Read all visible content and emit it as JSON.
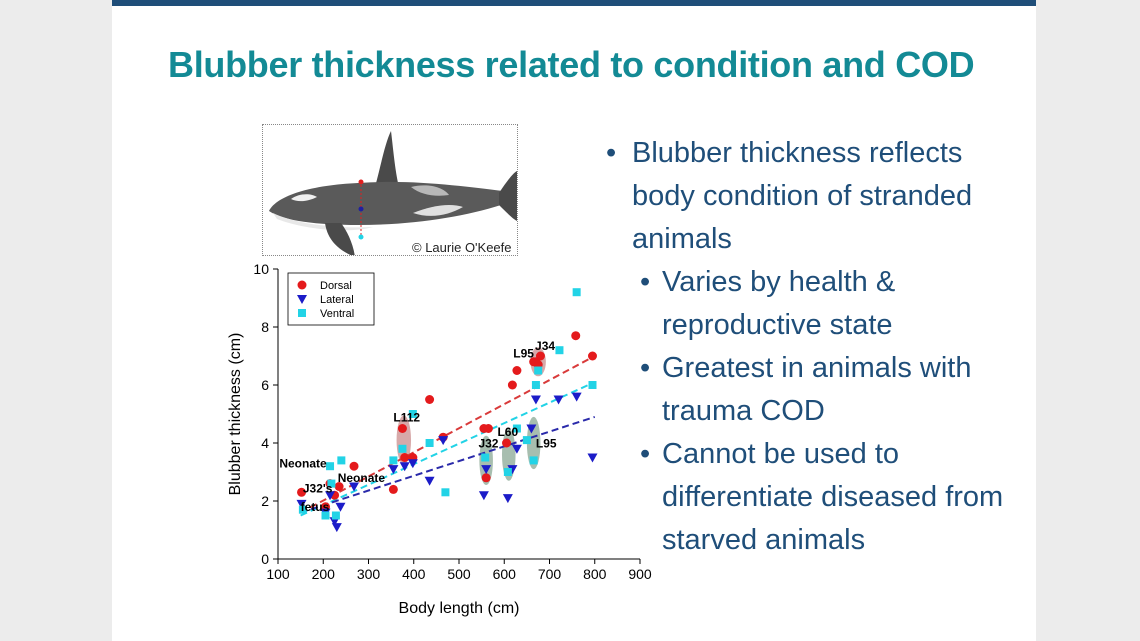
{
  "slide": {
    "title": "Blubber thickness related to condition and COD",
    "credit": "© Laurie O'Keefe",
    "bullets": [
      {
        "level": 1,
        "text": "Blubber thickness reflects\nbody condition of stranded\nanimals"
      },
      {
        "level": 2,
        "text": "Varies by health &\nreproductive state"
      },
      {
        "level": 2,
        "text": "Greatest in animals with\ntrauma COD"
      },
      {
        "level": 2,
        "text": "Cannot be used to\ndifferentiate diseased from\nstarved animals"
      }
    ]
  },
  "chart_data": {
    "type": "scatter",
    "xlabel": "Body length (cm)",
    "ylabel": "Blubber thickness (cm)",
    "xlim": [
      100,
      900
    ],
    "ylim": [
      0,
      10
    ],
    "xticks": [
      100,
      200,
      300,
      400,
      500,
      600,
      700,
      800,
      900
    ],
    "yticks": [
      0,
      2,
      4,
      6,
      8,
      10
    ],
    "grid": false,
    "legend_position": "top-left",
    "series": [
      {
        "name": "Dorsal",
        "marker": "circle",
        "color": "#e41a1c",
        "points": [
          [
            152,
            2.3
          ],
          [
            205,
            1.8
          ],
          [
            215,
            2.6
          ],
          [
            225,
            2.2
          ],
          [
            235,
            2.5
          ],
          [
            268,
            3.2
          ],
          [
            355,
            2.4
          ],
          [
            375,
            4.5
          ],
          [
            380,
            3.5
          ],
          [
            398,
            3.5
          ],
          [
            435,
            5.5
          ],
          [
            465,
            4.2
          ],
          [
            555,
            4.5
          ],
          [
            565,
            4.5
          ],
          [
            560,
            2.8
          ],
          [
            605,
            4.0
          ],
          [
            618,
            6.0
          ],
          [
            628,
            6.5
          ],
          [
            665,
            6.8
          ],
          [
            670,
            6.8
          ],
          [
            675,
            6.7
          ],
          [
            680,
            7.0
          ],
          [
            758,
            7.7
          ],
          [
            795,
            7.0
          ]
        ]
      },
      {
        "name": "Lateral",
        "marker": "triangle-down",
        "color": "#1c1cc8",
        "points": [
          [
            152,
            1.9
          ],
          [
            205,
            1.6
          ],
          [
            215,
            2.2
          ],
          [
            225,
            1.3
          ],
          [
            230,
            1.1
          ],
          [
            238,
            1.8
          ],
          [
            268,
            2.5
          ],
          [
            355,
            3.1
          ],
          [
            380,
            3.2
          ],
          [
            398,
            3.3
          ],
          [
            435,
            2.7
          ],
          [
            465,
            4.1
          ],
          [
            555,
            2.2
          ],
          [
            560,
            3.1
          ],
          [
            608,
            2.1
          ],
          [
            618,
            3.1
          ],
          [
            628,
            3.8
          ],
          [
            660,
            4.5
          ],
          [
            670,
            5.5
          ],
          [
            720,
            5.5
          ],
          [
            760,
            5.6
          ],
          [
            795,
            3.5
          ]
        ]
      },
      {
        "name": "Ventral",
        "marker": "square",
        "color": "#22d3e6",
        "points": [
          [
            155,
            1.7
          ],
          [
            205,
            1.5
          ],
          [
            215,
            3.2
          ],
          [
            218,
            2.6
          ],
          [
            228,
            1.5
          ],
          [
            240,
            3.4
          ],
          [
            355,
            3.4
          ],
          [
            375,
            3.8
          ],
          [
            398,
            5.0
          ],
          [
            435,
            4.0
          ],
          [
            470,
            2.3
          ],
          [
            558,
            3.5
          ],
          [
            608,
            3.0
          ],
          [
            628,
            4.5
          ],
          [
            650,
            4.1
          ],
          [
            665,
            3.4
          ],
          [
            670,
            6.0
          ],
          [
            675,
            6.5
          ],
          [
            722,
            7.2
          ],
          [
            760,
            9.2
          ],
          [
            795,
            6.0
          ]
        ]
      }
    ],
    "trendlines": [
      {
        "series": "Dorsal",
        "color": "#d93a3a",
        "from": [
          150,
          1.6
        ],
        "to": [
          800,
          7.0
        ]
      },
      {
        "series": "Ventral",
        "color": "#22d3e6",
        "from": [
          150,
          1.5
        ],
        "to": [
          800,
          6.1
        ]
      },
      {
        "series": "Lateral",
        "color": "#2a2aaa",
        "from": [
          150,
          1.6
        ],
        "to": [
          800,
          4.9
        ]
      }
    ],
    "highlights": [
      {
        "cx": 378,
        "cy": 4.1,
        "rx": 16,
        "ry": 0.85,
        "color": "#c98c8c"
      },
      {
        "cx": 560,
        "cy": 3.4,
        "rx": 15,
        "ry": 0.85,
        "color": "#8aa894"
      },
      {
        "cx": 610,
        "cy": 3.6,
        "rx": 15,
        "ry": 0.9,
        "color": "#8aa894"
      },
      {
        "cx": 665,
        "cy": 4.0,
        "rx": 15,
        "ry": 0.9,
        "color": "#8aa894"
      },
      {
        "cx": 675,
        "cy": 6.8,
        "rx": 17,
        "ry": 0.5,
        "color": "#c98c8c"
      }
    ],
    "annotations": [
      {
        "text": "L112",
        "x": 355,
        "y": 4.75
      },
      {
        "text": "L95",
        "x": 620,
        "y": 6.95
      },
      {
        "text": "J34",
        "x": 668,
        "y": 7.2
      },
      {
        "text": "L60",
        "x": 585,
        "y": 4.25
      },
      {
        "text": "J32",
        "x": 543,
        "y": 3.85
      },
      {
        "text": "L95",
        "x": 670,
        "y": 3.85
      },
      {
        "text": "Neonate",
        "x": 103,
        "y": 3.15
      },
      {
        "text": "Neonate",
        "x": 232,
        "y": 2.65
      },
      {
        "text": "J32's",
        "x": 155,
        "y": 2.3
      },
      {
        "text": "fetus",
        "x": 150,
        "y": 1.65
      }
    ]
  }
}
